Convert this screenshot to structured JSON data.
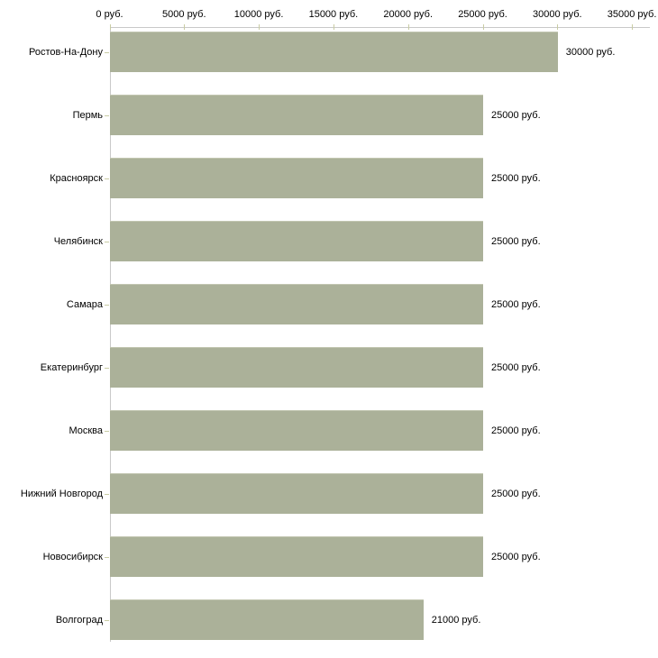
{
  "chart_data": {
    "type": "bar",
    "orientation": "horizontal",
    "title": "",
    "xlabel": "",
    "ylabel": "",
    "unit": "руб.",
    "categories": [
      "Ростов-На-Дону",
      "Пермь",
      "Красноярск",
      "Челябинск",
      "Самара",
      "Екатеринбург",
      "Москва",
      "Нижний Новгород",
      "Новосибирск",
      "Волгоград"
    ],
    "values": [
      30000,
      25000,
      25000,
      25000,
      25000,
      25000,
      25000,
      25000,
      25000,
      21000
    ],
    "value_labels": [
      "30000 руб.",
      "25000 руб.",
      "25000 руб.",
      "25000 руб.",
      "25000 руб.",
      "25000 руб.",
      "25000 руб.",
      "25000 руб.",
      "25000 руб.",
      "21000 руб."
    ],
    "x_axis": {
      "min": 0,
      "max": 35000,
      "tick_interval": 5000,
      "tick_values": [
        0,
        5000,
        10000,
        15000,
        20000,
        25000,
        30000,
        35000
      ],
      "tick_labels": [
        "0 руб.",
        "5000 руб.",
        "10000 руб.",
        "15000 руб.",
        "20000 руб.",
        "25000 руб.",
        "30000 руб.",
        "35000 руб."
      ]
    },
    "grid": false,
    "legend_position": "none",
    "colors": {
      "bar_fill": "#ABB199",
      "bar_top_edge": "#C2C6B1",
      "axis_line": "#C9C9C9",
      "tick_mark": "#C9CCA4",
      "text": "#000000",
      "background": "#FFFFFF"
    }
  }
}
